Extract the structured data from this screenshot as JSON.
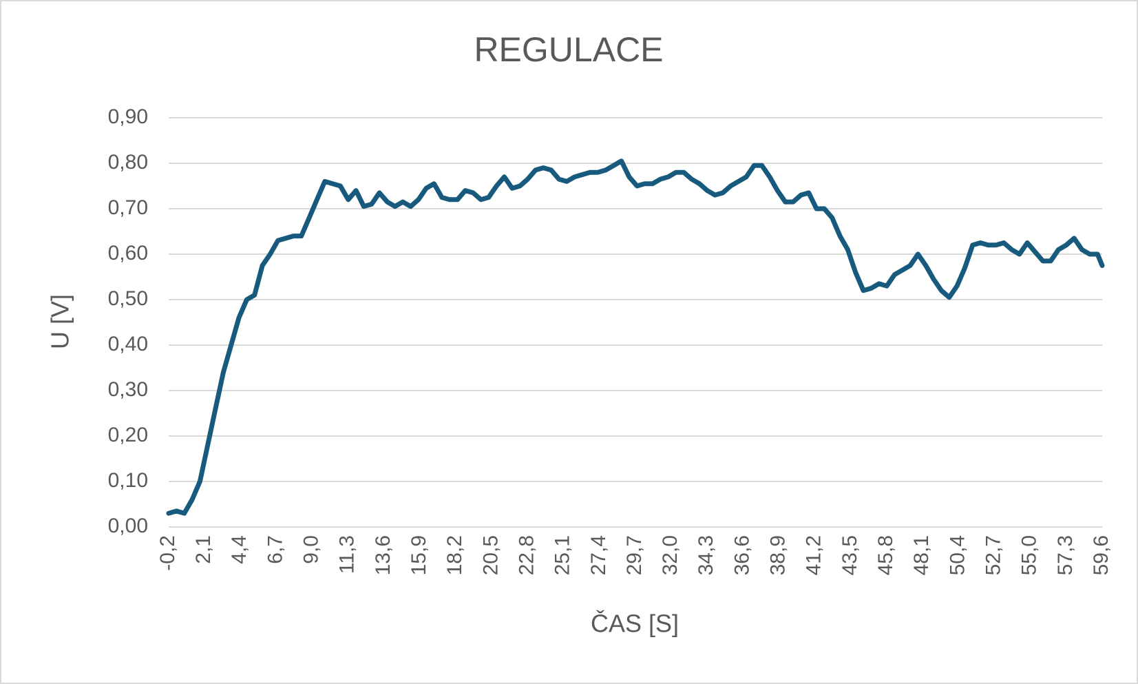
{
  "chart_data": {
    "type": "line",
    "title": "REGULACE",
    "x_label": "ČAS [S]",
    "y_label": "U [V]",
    "color": "#175a7d",
    "grid": true,
    "xlim": [
      -0.2,
      59.6
    ],
    "ylim": [
      0,
      0.9
    ],
    "xticks": [
      {
        "value": -0.2,
        "label": "-0,2"
      },
      {
        "value": 2.1,
        "label": "2,1"
      },
      {
        "value": 4.4,
        "label": "4,4"
      },
      {
        "value": 6.7,
        "label": "6,7"
      },
      {
        "value": 9.0,
        "label": "9,0"
      },
      {
        "value": 11.3,
        "label": "11,3"
      },
      {
        "value": 13.6,
        "label": "13,6"
      },
      {
        "value": 15.9,
        "label": "15,9"
      },
      {
        "value": 18.2,
        "label": "18,2"
      },
      {
        "value": 20.5,
        "label": "20,5"
      },
      {
        "value": 22.8,
        "label": "22,8"
      },
      {
        "value": 25.1,
        "label": "25,1"
      },
      {
        "value": 27.4,
        "label": "27,4"
      },
      {
        "value": 29.7,
        "label": "29,7"
      },
      {
        "value": 32.0,
        "label": "32,0"
      },
      {
        "value": 34.3,
        "label": "34,3"
      },
      {
        "value": 36.6,
        "label": "36,6"
      },
      {
        "value": 38.9,
        "label": "38,9"
      },
      {
        "value": 41.2,
        "label": "41,2"
      },
      {
        "value": 43.5,
        "label": "43,5"
      },
      {
        "value": 45.8,
        "label": "45,8"
      },
      {
        "value": 48.1,
        "label": "48,1"
      },
      {
        "value": 50.4,
        "label": "50,4"
      },
      {
        "value": 52.7,
        "label": "52,7"
      },
      {
        "value": 55.0,
        "label": "55,0"
      },
      {
        "value": 57.3,
        "label": "57,3"
      },
      {
        "value": 59.6,
        "label": "59,6"
      }
    ],
    "yticks": [
      {
        "value": 0,
        "label": "0,00"
      },
      {
        "value": 0.1,
        "label": "0,10"
      },
      {
        "value": 0.2,
        "label": "0,20"
      },
      {
        "value": 0.3,
        "label": "0,30"
      },
      {
        "value": 0.4,
        "label": "0,40"
      },
      {
        "value": 0.5,
        "label": "0,50"
      },
      {
        "value": 0.6,
        "label": "0,60"
      },
      {
        "value": 0.7,
        "label": "0,70"
      },
      {
        "value": 0.8,
        "label": "0,80"
      },
      {
        "value": 0.9,
        "label": "0,90"
      }
    ],
    "x": [
      -0.2,
      0.3,
      0.8,
      1.3,
      1.8,
      2.3,
      2.8,
      3.3,
      3.8,
      4.3,
      4.8,
      5.3,
      5.8,
      6.3,
      6.8,
      7.3,
      7.8,
      8.3,
      8.8,
      9.3,
      9.8,
      10.3,
      10.8,
      11.3,
      11.8,
      12.3,
      12.8,
      13.3,
      13.8,
      14.3,
      14.8,
      15.3,
      15.8,
      16.3,
      16.8,
      17.3,
      17.8,
      18.3,
      18.8,
      19.3,
      19.8,
      20.3,
      20.8,
      21.3,
      21.8,
      22.3,
      22.8,
      23.3,
      23.8,
      24.3,
      24.8,
      25.3,
      25.8,
      26.3,
      26.8,
      27.3,
      27.8,
      28.3,
      28.8,
      29.3,
      29.8,
      30.3,
      30.8,
      31.3,
      31.8,
      32.3,
      32.8,
      33.3,
      33.8,
      34.3,
      34.8,
      35.3,
      35.8,
      36.3,
      36.8,
      37.3,
      37.8,
      38.3,
      38.8,
      39.3,
      39.8,
      40.3,
      40.8,
      41.3,
      41.8,
      42.3,
      42.8,
      43.3,
      43.8,
      44.3,
      44.8,
      45.3,
      45.8,
      46.3,
      46.8,
      47.3,
      47.8,
      48.3,
      48.8,
      49.3,
      49.8,
      50.3,
      50.8,
      51.3,
      51.8,
      52.3,
      52.8,
      53.3,
      53.8,
      54.3,
      54.8,
      55.3,
      55.8,
      56.3,
      56.8,
      57.3,
      57.8,
      58.3,
      58.8,
      59.3,
      59.6
    ],
    "values": [
      0.03,
      0.035,
      0.03,
      0.06,
      0.1,
      0.18,
      0.26,
      0.34,
      0.4,
      0.46,
      0.5,
      0.51,
      0.575,
      0.6,
      0.63,
      0.635,
      0.64,
      0.64,
      0.68,
      0.72,
      0.76,
      0.755,
      0.75,
      0.72,
      0.74,
      0.705,
      0.71,
      0.735,
      0.715,
      0.705,
      0.715,
      0.705,
      0.72,
      0.745,
      0.755,
      0.725,
      0.72,
      0.72,
      0.74,
      0.735,
      0.72,
      0.725,
      0.75,
      0.77,
      0.745,
      0.75,
      0.765,
      0.785,
      0.79,
      0.785,
      0.765,
      0.76,
      0.77,
      0.775,
      0.78,
      0.78,
      0.785,
      0.795,
      0.805,
      0.77,
      0.75,
      0.755,
      0.755,
      0.765,
      0.77,
      0.78,
      0.78,
      0.765,
      0.755,
      0.74,
      0.73,
      0.735,
      0.75,
      0.76,
      0.77,
      0.795,
      0.795,
      0.77,
      0.74,
      0.715,
      0.715,
      0.73,
      0.735,
      0.7,
      0.7,
      0.68,
      0.64,
      0.61,
      0.56,
      0.52,
      0.525,
      0.535,
      0.53,
      0.555,
      0.565,
      0.575,
      0.6,
      0.575,
      0.545,
      0.52,
      0.505,
      0.53,
      0.57,
      0.62,
      0.625,
      0.62,
      0.62,
      0.625,
      0.61,
      0.6,
      0.625,
      0.605,
      0.585,
      0.585,
      0.61,
      0.62,
      0.635,
      0.61,
      0.6,
      0.6,
      0.575
    ]
  }
}
